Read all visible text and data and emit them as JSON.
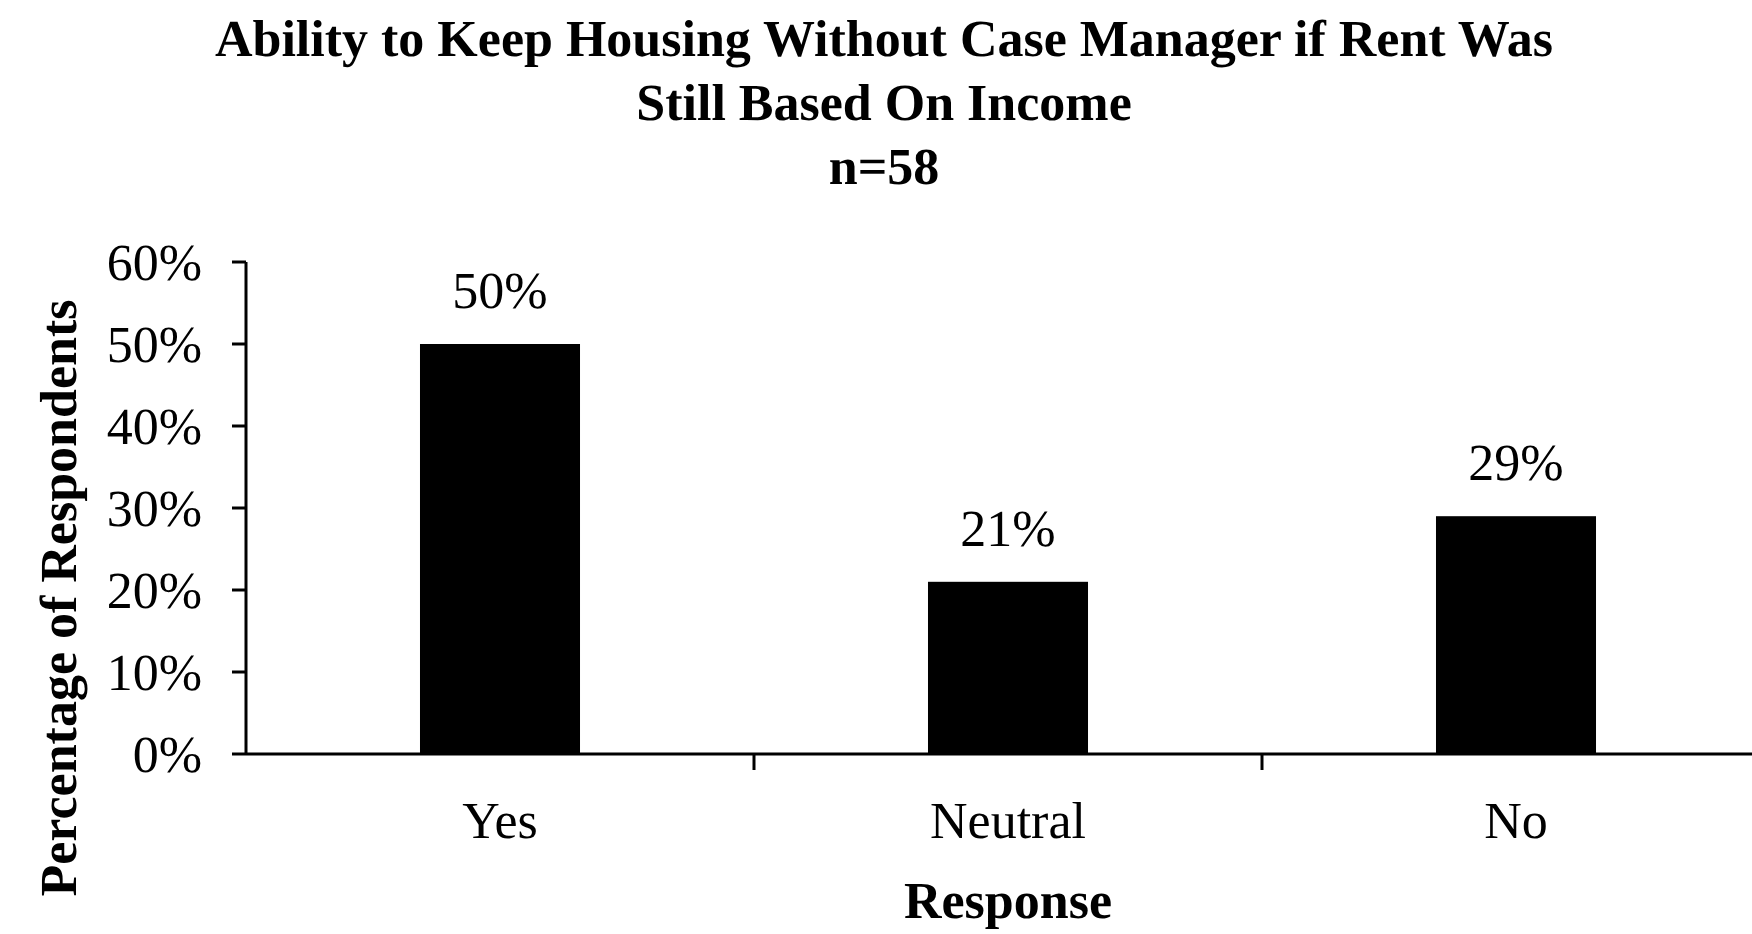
{
  "chart_data": {
    "type": "bar",
    "title": "Ability to Keep Housing Without Case Manager if Rent Was Still Based On Income",
    "subtitle": "n=58",
    "xlabel": "Response",
    "ylabel": "Percentage of Respondents",
    "categories": [
      "Yes",
      "Neutral",
      "No"
    ],
    "values": [
      50,
      21,
      29
    ],
    "color": "#000000",
    "value_labels": [
      "50%",
      "21%",
      "29%"
    ],
    "ylim": [
      0,
      60
    ],
    "yticks": [
      {
        "value": 0,
        "label": "0%"
      },
      {
        "value": 10,
        "label": "10%"
      },
      {
        "value": 20,
        "label": "20%"
      },
      {
        "value": 30,
        "label": "30%"
      },
      {
        "value": 40,
        "label": "40%"
      },
      {
        "value": 50,
        "label": "50%"
      },
      {
        "value": 60,
        "label": "60%"
      }
    ]
  }
}
